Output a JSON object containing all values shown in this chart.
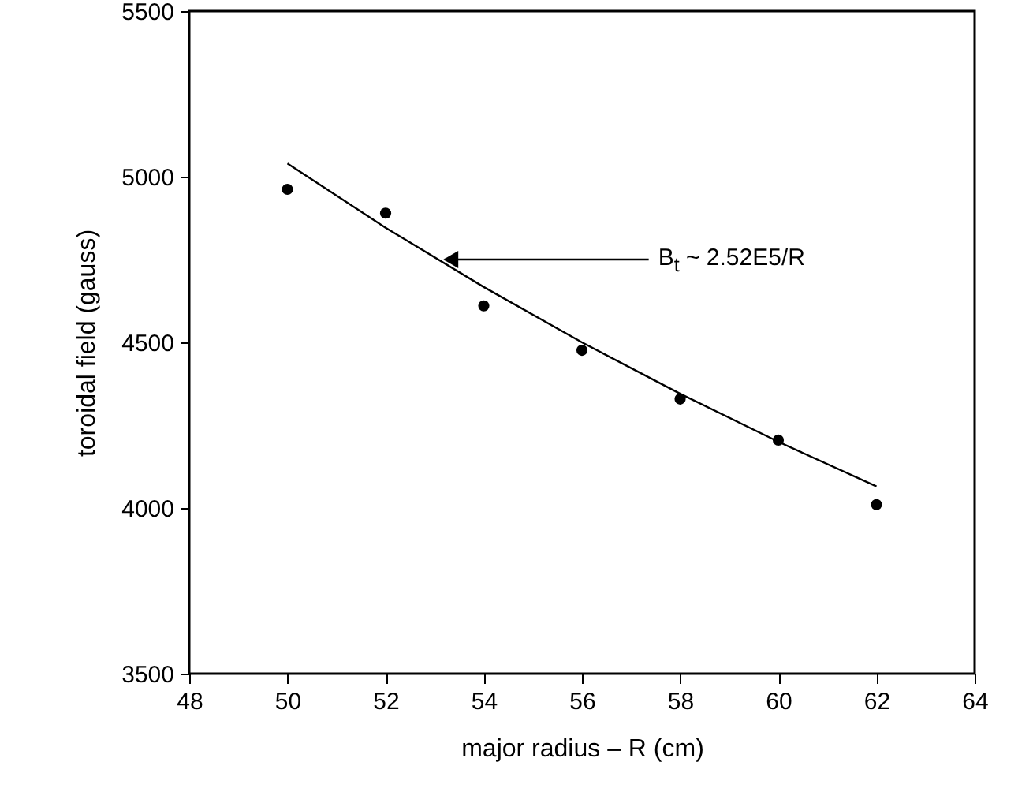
{
  "chart_data": {
    "type": "scatter",
    "xlabel": "major radius – R (cm)",
    "ylabel": "toroidal field (gauss)",
    "x": [
      50,
      52,
      54,
      56,
      58,
      60,
      62
    ],
    "series": [
      {
        "type": "scatter",
        "color": "#000000",
        "marker": "circle",
        "values": [
          4962,
          4890,
          4610,
          4476,
          4329,
          4205,
          4010
        ]
      },
      {
        "type": "line",
        "color": "#000000",
        "line_style": "solid",
        "x": [
          50,
          52,
          54,
          56,
          58,
          60,
          62
        ],
        "values": [
          5040,
          4846,
          4667,
          4500,
          4345,
          4200,
          4065
        ]
      }
    ],
    "annotations": [
      {
        "text": "B$_{t}$ ~ 2.52E5/R",
        "x": 53.2,
        "y": 4750
      }
    ],
    "xlim": [
      48,
      64
    ],
    "xticks": [
      48,
      50,
      52,
      54,
      56,
      58,
      60,
      62,
      64
    ],
    "ylim": [
      3500,
      5500
    ],
    "yticks": [
      3500,
      4000,
      4500,
      5000,
      5500
    ],
    "grid": false
  }
}
